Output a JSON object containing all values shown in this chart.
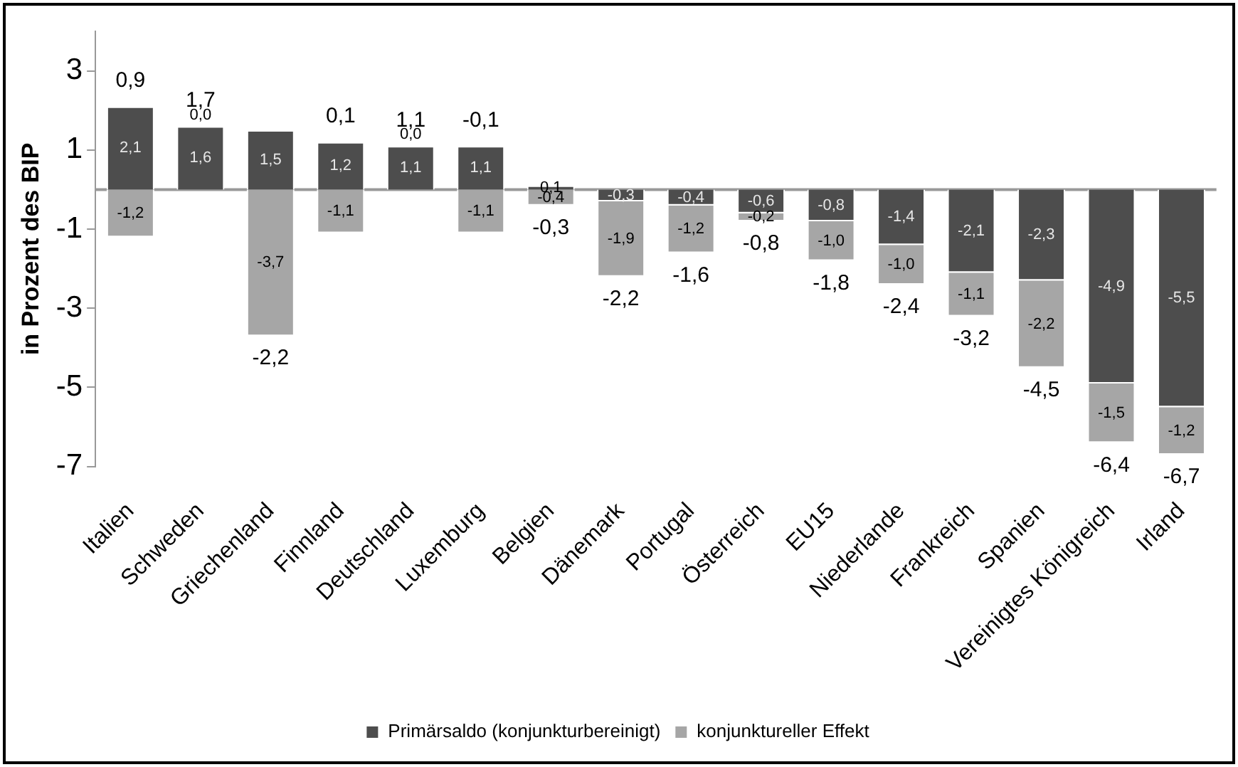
{
  "chart_data": {
    "type": "bar",
    "stacked": true,
    "ylabel": "in Prozent des BIP",
    "categories": [
      "Italien",
      "Schweden",
      "Griechenland",
      "Finnland",
      "Deutschland",
      "Luxemburg",
      "Belgien",
      "Dänemark",
      "Portugal",
      "Österreich",
      "EU15",
      "Niederlande",
      "Frankreich",
      "Spanien",
      "Vereinigtes Königreich",
      "Irland"
    ],
    "series": [
      {
        "name": "Primärsaldo (konjunkturbereinigt)",
        "color": "#4d4d4d",
        "values": [
          2.1,
          1.6,
          1.5,
          1.2,
          1.1,
          1.1,
          0.1,
          -0.3,
          -0.4,
          -0.6,
          -0.8,
          -1.4,
          -2.1,
          -2.3,
          -4.9,
          -5.5
        ],
        "value_labels": [
          "2,1",
          "1,6",
          "1,5",
          "1,2",
          "1,1",
          "1,1",
          "0,1",
          "-0,3",
          "-0,4",
          "-0,6",
          "-0,8",
          "-1,4",
          "-2,1",
          "-2,3",
          "-4,9",
          "-5,5"
        ]
      },
      {
        "name": "konjunktureller Effekt",
        "color": "#a6a6a6",
        "values": [
          -1.2,
          0.0,
          -3.7,
          -1.1,
          0.0,
          -1.1,
          -0.4,
          -1.9,
          -1.2,
          -0.2,
          -1.0,
          -1.0,
          -1.1,
          -2.2,
          -1.5,
          -1.2
        ],
        "value_labels": [
          "-1,2",
          "0,0",
          "-3,7",
          "-1,1",
          "0,0",
          "-1,1",
          "-0,4",
          "-1,9",
          "-1,2",
          "-0,2",
          "-1,0",
          "-1,0",
          "-1,1",
          "-2,2",
          "-1,5",
          "-1,2"
        ]
      }
    ],
    "totals": [
      "0,9",
      "1,7",
      "-2,2",
      "0,1",
      "1,1",
      "-0,1",
      "-0,3",
      "-2,2",
      "-1,6",
      "-0,8",
      "-1,8",
      "-2,4",
      "-3,2",
      "-4,5",
      "-6,4",
      "-6,7"
    ],
    "ylim": [
      -7,
      4
    ],
    "yticks": [
      3,
      1,
      -1,
      -3,
      -5,
      -7
    ],
    "grid": false,
    "legend": "bottom"
  }
}
